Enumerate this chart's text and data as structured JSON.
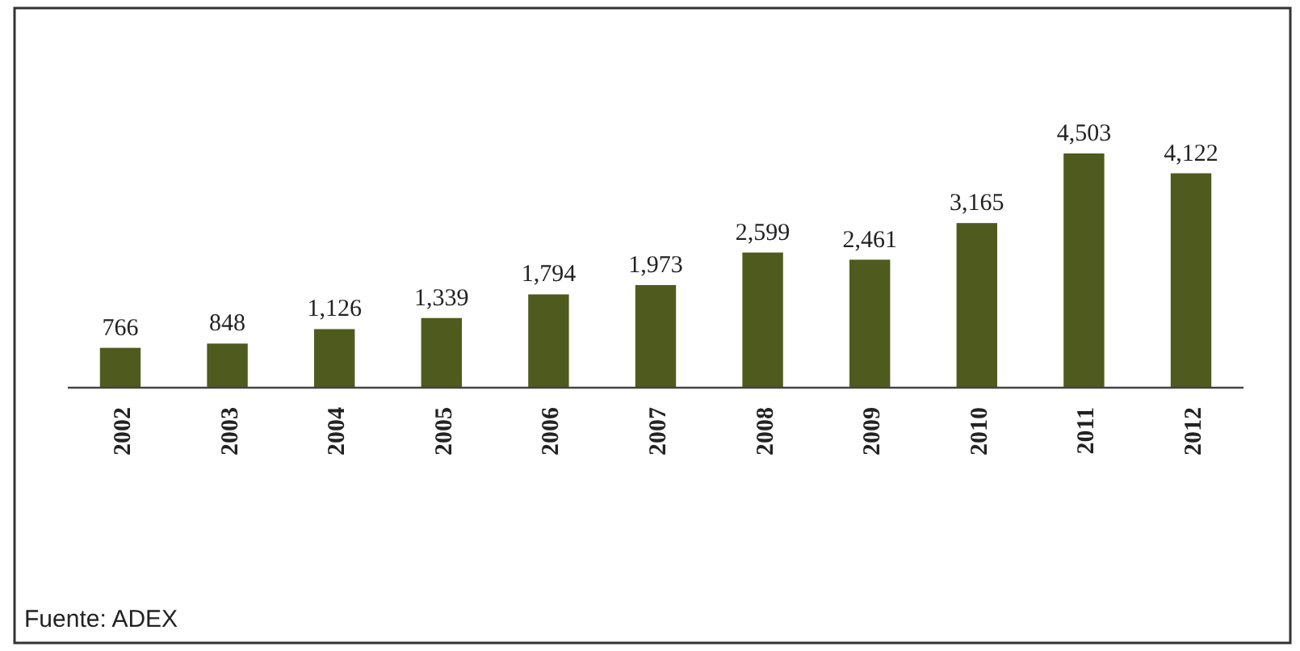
{
  "chart_data": {
    "type": "bar",
    "categories": [
      "2002",
      "2003",
      "2004",
      "2005",
      "2006",
      "2007",
      "2008",
      "2009",
      "2010",
      "2011",
      "2012"
    ],
    "values": [
      766,
      848,
      1126,
      1339,
      1794,
      1973,
      2599,
      2461,
      3165,
      4503,
      4122
    ],
    "color": "#4f5a1e",
    "value_labels": [
      "766",
      "848",
      "1,126",
      "1,339",
      "1,794",
      "1,973",
      "2,599",
      "2,461",
      "3,165",
      "4,503",
      "4,122"
    ],
    "annotations": [
      "Fuente: ADEX"
    ]
  }
}
